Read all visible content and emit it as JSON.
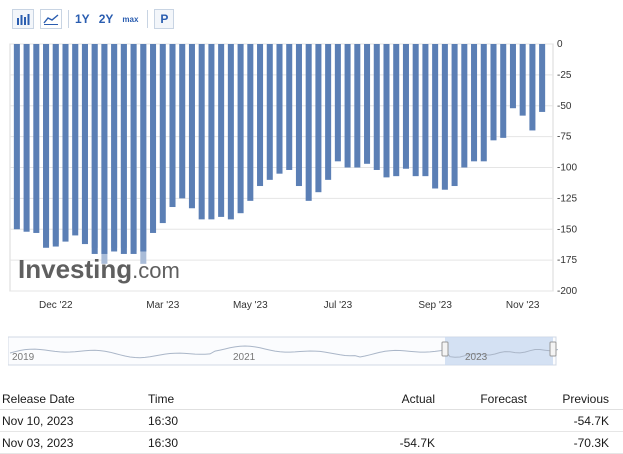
{
  "toolbar": {
    "bar_chart_icon": "bar-chart-icon",
    "line_chart_icon": "line-chart-icon",
    "range_1y": "1Y",
    "range_2y": "2Y",
    "range_max": "max",
    "p_button": "P"
  },
  "chart_data": {
    "type": "bar",
    "title": "",
    "xlabel": "",
    "ylabel": "",
    "ylim": [
      -200,
      0
    ],
    "y_ticks": [
      "0",
      "-25",
      "-50",
      "-75",
      "-100",
      "-125",
      "-150",
      "-175",
      "-200"
    ],
    "x_ticks": [
      "Dec '22",
      "Mar '23",
      "May '23",
      "Jul '23",
      "Sep '23",
      "Nov '23"
    ],
    "series": [
      {
        "values": [
          -150,
          -152,
          -153,
          -165,
          -164,
          -160,
          -155,
          -162,
          -170,
          -170,
          -168,
          -170,
          -170,
          -168,
          -153,
          -145,
          -132,
          -125,
          -133,
          -142,
          -142,
          -140,
          -142,
          -137,
          -127,
          -115,
          -110,
          -105,
          -102,
          -115,
          -127,
          -120,
          -110,
          -95,
          -100,
          -100,
          -97,
          -102,
          -108,
          -107,
          -101,
          -107,
          -107,
          -117,
          -118,
          -115,
          -100,
          -95,
          -95,
          -78,
          -76,
          -52,
          -58,
          -70,
          -55
        ]
      },
      {
        "values": [
          null,
          null,
          null,
          -160,
          -162,
          -158,
          -150,
          -160,
          -165,
          -178,
          -165,
          -165,
          -167,
          -178,
          null,
          null,
          null,
          null,
          null,
          null,
          null,
          null,
          null,
          null,
          null,
          null,
          null,
          null,
          null,
          null,
          null,
          null,
          null,
          null,
          null,
          null,
          null,
          null,
          null,
          null,
          null,
          null,
          null,
          null,
          null,
          null,
          null,
          null,
          null,
          null,
          null,
          null,
          null,
          null,
          null
        ]
      }
    ],
    "colors": {
      "bar": "#5b7fb5",
      "bar_light": "#a9bcd8",
      "grid": "#e5e5e5"
    },
    "watermark": "Investing.com"
  },
  "navigator": {
    "labels": [
      "2019",
      "2021",
      "2023"
    ]
  },
  "table": {
    "headers": {
      "release_date": "Release Date",
      "time": "Time",
      "actual": "Actual",
      "forecast": "Forecast",
      "previous": "Previous"
    },
    "rows": [
      {
        "release_date": "Nov 10, 2023",
        "time": "16:30",
        "actual": "",
        "forecast": "",
        "previous": "-54.7K"
      },
      {
        "release_date": "Nov 03, 2023",
        "time": "16:30",
        "actual": "-54.7K",
        "forecast": "",
        "previous": "-70.3K"
      }
    ]
  }
}
